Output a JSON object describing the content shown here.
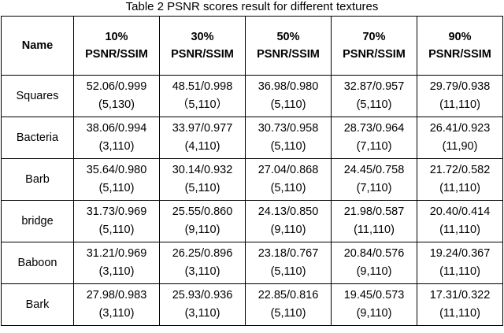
{
  "caption": "Table 2 PSNR scores result for different textures",
  "header": {
    "name": "Name",
    "columns": [
      {
        "pct": "10%",
        "metric": "PSNR/SSIM"
      },
      {
        "pct": "30%",
        "metric": "PSNR/SSIM"
      },
      {
        "pct": "50%",
        "metric": "PSNR/SSIM"
      },
      {
        "pct": "70%",
        "metric": "PSNR/SSIM"
      },
      {
        "pct": "90%",
        "metric": "PSNR/SSIM"
      }
    ]
  },
  "rows": [
    {
      "name": "Squares",
      "cells": [
        {
          "score": "52.06/0.999",
          "params": "(5,130)"
        },
        {
          "score": "48.51/0.998",
          "params": "（5,110）"
        },
        {
          "score": "36.98/0.980",
          "params": "(5,110)"
        },
        {
          "score": "32.87/0.957",
          "params": "(5,110)"
        },
        {
          "score": "29.79/0.938",
          "params": "(11,110)"
        }
      ]
    },
    {
      "name": "Bacteria",
      "cells": [
        {
          "score": "38.06/0.994",
          "params": "(3,110)"
        },
        {
          "score": "33.97/0.977",
          "params": "(4,110)"
        },
        {
          "score": "30.73/0.958",
          "params": "(5,110)"
        },
        {
          "score": "28.73/0.964",
          "params": "(7,110)"
        },
        {
          "score": "26.41/0.923",
          "params": "(11,90)"
        }
      ]
    },
    {
      "name": "Barb",
      "cells": [
        {
          "score": "35.64/0.980",
          "params": "(5,110)"
        },
        {
          "score": "30.14/0.932",
          "params": "(5,110)"
        },
        {
          "score": "27.04/0.868",
          "params": "(5,110)"
        },
        {
          "score": "24.45/0.758",
          "params": "(7,110)"
        },
        {
          "score": "21.72/0.582",
          "params": "(11,110)"
        }
      ]
    },
    {
      "name": "bridge",
      "cells": [
        {
          "score": "31.73/0.969",
          "params": "(5,110)"
        },
        {
          "score": "25.55/0.860",
          "params": "(9,110)"
        },
        {
          "score": "24.13/0.850",
          "params": "(9,110)"
        },
        {
          "score": "21.98/0.587",
          "params": "(11,110)"
        },
        {
          "score": "20.40/0.414",
          "params": "(11,110)"
        }
      ]
    },
    {
      "name": "Baboon",
      "cells": [
        {
          "score": "31.21/0.969",
          "params": "(3,110)"
        },
        {
          "score": "26.25/0.896",
          "params": "(3,110)"
        },
        {
          "score": "23.18/0.767",
          "params": "(5,110)"
        },
        {
          "score": "20.84/0.576",
          "params": "(9,110)"
        },
        {
          "score": "19.24/0.367",
          "params": "(11,110)"
        }
      ]
    },
    {
      "name": "Bark",
      "cells": [
        {
          "score": "27.98/0.983",
          "params": "(3,110)"
        },
        {
          "score": "25.93/0.936",
          "params": "(3,110)"
        },
        {
          "score": "22.85/0.816",
          "params": "(5,110)"
        },
        {
          "score": "19.45/0.573",
          "params": "(9,110)"
        },
        {
          "score": "17.31/0.322",
          "params": "(11,110)"
        }
      ]
    }
  ]
}
